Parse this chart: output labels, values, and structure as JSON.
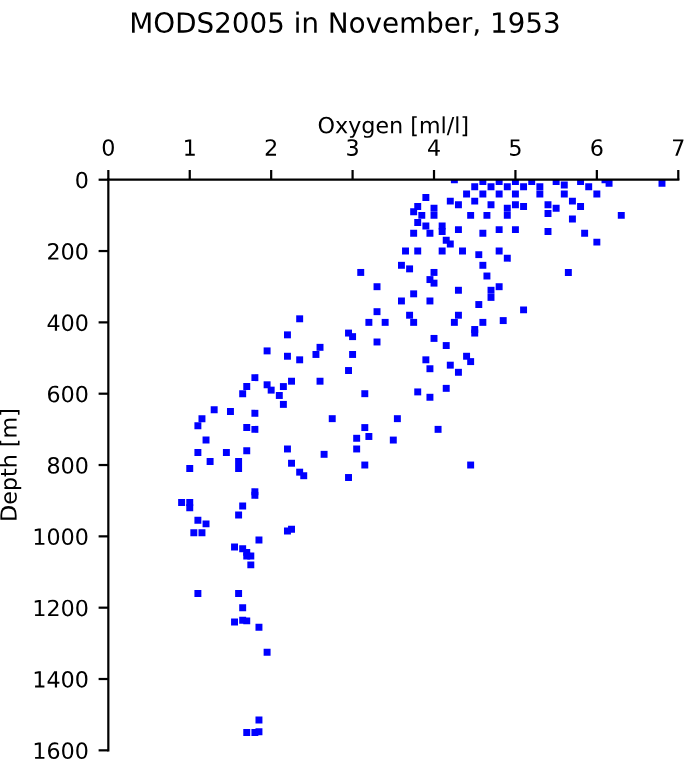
{
  "chart_data": {
    "type": "scatter",
    "title": "MODS2005 in November, 1953",
    "xlabel": "Oxygen [ml/l]",
    "ylabel": "Depth [m]",
    "xlim": [
      0,
      7
    ],
    "xticks": [
      0,
      1,
      2,
      3,
      4,
      5,
      6,
      7
    ],
    "ylim": [
      1600,
      0
    ],
    "yticks": [
      0,
      200,
      400,
      600,
      800,
      1000,
      1200,
      1400,
      1600
    ],
    "grid": false,
    "legend": false,
    "marker": "square",
    "series": [
      {
        "color": "#0000ff",
        "x": [
          4.25,
          4.6,
          4.8,
          5.0,
          5.2,
          5.5,
          5.8,
          6.1,
          6.15,
          6.8,
          4.5,
          4.7,
          4.9,
          5.1,
          5.3,
          5.6,
          5.9,
          4.4,
          4.6,
          4.8,
          5.0,
          5.3,
          5.6,
          6.0,
          4.2,
          4.5,
          4.7,
          5.0,
          5.4,
          5.7,
          3.9,
          3.8,
          4.0,
          4.3,
          4.9,
          5.1,
          5.5,
          5.8,
          3.75,
          3.85,
          4.0,
          4.45,
          4.65,
          4.9,
          5.4,
          5.7,
          6.3,
          3.8,
          3.9,
          4.1,
          3.75,
          3.95,
          4.1,
          4.3,
          4.6,
          4.8,
          5.0,
          5.4,
          5.85,
          6.0,
          4.15,
          4.2,
          3.65,
          3.8,
          4.1,
          4.35,
          4.55,
          4.8,
          4.9,
          4.6,
          3.6,
          3.7,
          3.1,
          4.0,
          4.65,
          5.65,
          4.8,
          4.7,
          4.3,
          3.95,
          4.0,
          3.95,
          3.3,
          3.75,
          3.6,
          4.7,
          5.1,
          4.55,
          3.3,
          3.7,
          3.4,
          3.2,
          3.75,
          4.3,
          4.6,
          4.85,
          4.25,
          4.5,
          4.5,
          2.35,
          4.0,
          3.0,
          2.95,
          2.2,
          3.3,
          2.6,
          1.95,
          2.55,
          2.2,
          2.35,
          3.0,
          4.15,
          4.4,
          4.45,
          3.9,
          4.2,
          4.3,
          3.95,
          2.95,
          2.6,
          2.25,
          1.8,
          1.7,
          1.95,
          2.15,
          2.1,
          2.0,
          2.15,
          1.65,
          3.15,
          3.8,
          3.95,
          4.15,
          1.3,
          1.5,
          1.8,
          1.15,
          1.1,
          2.75,
          3.55,
          1.7,
          1.8,
          4.05,
          3.15,
          1.2,
          3.5,
          3.05,
          3.2,
          1.1,
          1.25,
          1.45,
          1.7,
          2.2,
          2.65,
          3.05,
          1.6,
          1.6,
          1.0,
          2.25,
          2.35,
          2.4,
          2.95,
          3.15,
          4.45,
          0.9,
          1.0,
          1.0,
          1.1,
          1.05,
          1.15,
          1.2,
          1.6,
          1.65,
          1.8,
          1.8,
          2.2,
          2.25,
          1.85,
          1.55,
          1.65,
          1.7,
          1.7,
          1.75,
          1.75,
          1.1,
          1.6,
          1.65,
          1.55,
          1.65,
          1.7,
          1.85,
          1.95,
          1.85,
          1.7,
          1.8,
          1.85
        ],
        "values": [
          0,
          5,
          5,
          5,
          5,
          5,
          5,
          0,
          10,
          10,
          20,
          20,
          20,
          20,
          20,
          15,
          20,
          40,
          40,
          40,
          40,
          40,
          40,
          40,
          60,
          60,
          70,
          70,
          70,
          60,
          50,
          75,
          80,
          70,
          80,
          75,
          80,
          75,
          90,
          100,
          100,
          100,
          100,
          100,
          95,
          110,
          100,
          120,
          130,
          130,
          150,
          150,
          145,
          140,
          150,
          140,
          140,
          145,
          150,
          175,
          170,
          180,
          200,
          200,
          200,
          200,
          210,
          200,
          220,
          240,
          240,
          250,
          260,
          260,
          270,
          260,
          300,
          310,
          310,
          280,
          290,
          340,
          300,
          320,
          340,
          330,
          365,
          350,
          370,
          380,
          400,
          400,
          400,
          380,
          400,
          395,
          400,
          420,
          430,
          390,
          445,
          440,
          430,
          435,
          455,
          470,
          480,
          490,
          495,
          505,
          490,
          465,
          495,
          510,
          505,
          520,
          540,
          530,
          535,
          565,
          565,
          555,
          580,
          575,
          580,
          605,
          590,
          630,
          600,
          600,
          595,
          610,
          585,
          645,
          650,
          655,
          670,
          690,
          670,
          670,
          695,
          700,
          700,
          695,
          730,
          730,
          725,
          720,
          765,
          790,
          765,
          760,
          755,
          770,
          755,
          790,
          810,
          810,
          795,
          820,
          830,
          835,
          800,
          800,
          905,
          905,
          920,
          955,
          990,
          990,
          965,
          940,
          915,
          875,
          885,
          985,
          980,
          1010,
          1030,
          1035,
          1045,
          1055,
          1055,
          1080,
          1160,
          1160,
          1200,
          1240,
          1235,
          1237,
          1255,
          1325,
          1515,
          1550,
          1550,
          1548
        ]
      }
    ]
  }
}
